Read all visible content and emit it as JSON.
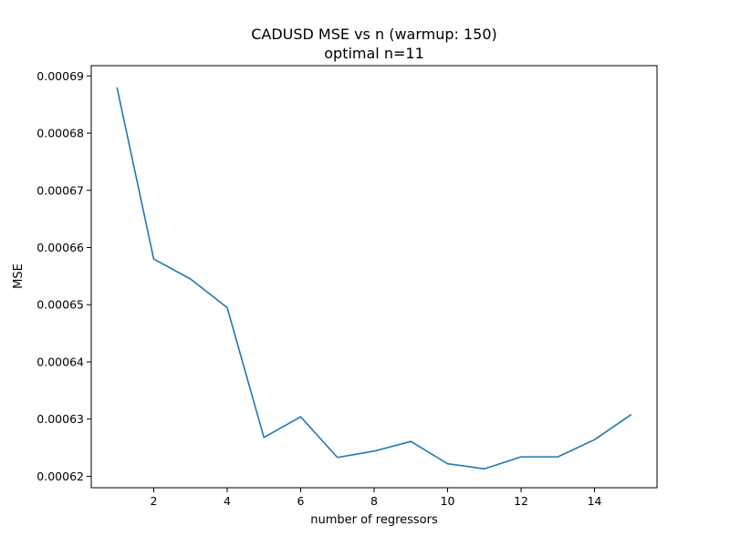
{
  "chart_data": {
    "type": "line",
    "title": "CADUSD MSE vs n (warmup: 150)",
    "subtitle": "optimal n=11",
    "xlabel": "number of regressors",
    "ylabel": "MSE",
    "xlim": [
      0.3,
      15.7
    ],
    "ylim": [
      0.000618,
      0.0006918
    ],
    "x_ticks": [
      2,
      4,
      6,
      8,
      10,
      12,
      14
    ],
    "x_tick_labels": [
      "2",
      "4",
      "6",
      "8",
      "10",
      "12",
      "14"
    ],
    "y_ticks": [
      0.00062,
      0.00063,
      0.00064,
      0.00065,
      0.00066,
      0.00067,
      0.00068,
      0.00069
    ],
    "y_tick_labels": [
      "0.00062",
      "0.00063",
      "0.00064",
      "0.00065",
      "0.00066",
      "0.00067",
      "0.00068",
      "0.00069"
    ],
    "grid": false,
    "series": [
      {
        "color": "#1f77b4",
        "x": [
          1,
          2,
          3,
          4,
          5,
          6,
          7,
          8,
          9,
          10,
          11,
          12,
          13,
          14,
          15
        ],
        "values": [
          0.000688,
          0.000658,
          0.0006545,
          0.0006495,
          0.0006268,
          0.0006304,
          0.0006233,
          0.0006244,
          0.0006261,
          0.0006222,
          0.0006213,
          0.0006234,
          0.0006234,
          0.0006264,
          0.0006308
        ]
      }
    ]
  }
}
